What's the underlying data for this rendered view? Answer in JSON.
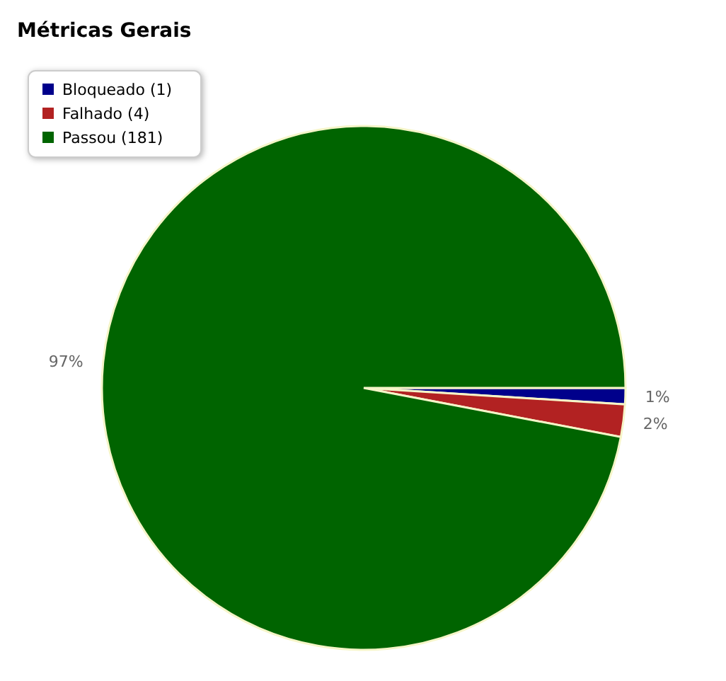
{
  "chart_data": {
    "type": "pie",
    "title": "Métricas Gerais",
    "categories": [
      "Bloqueado (1)",
      "Falhado (4)",
      "Passou (181)"
    ],
    "values": [
      1,
      2,
      97
    ],
    "value_labels": [
      "1%",
      "2%",
      "97%"
    ],
    "colors": [
      "#00008b",
      "#b22222",
      "#006400"
    ],
    "legend": "top left"
  }
}
